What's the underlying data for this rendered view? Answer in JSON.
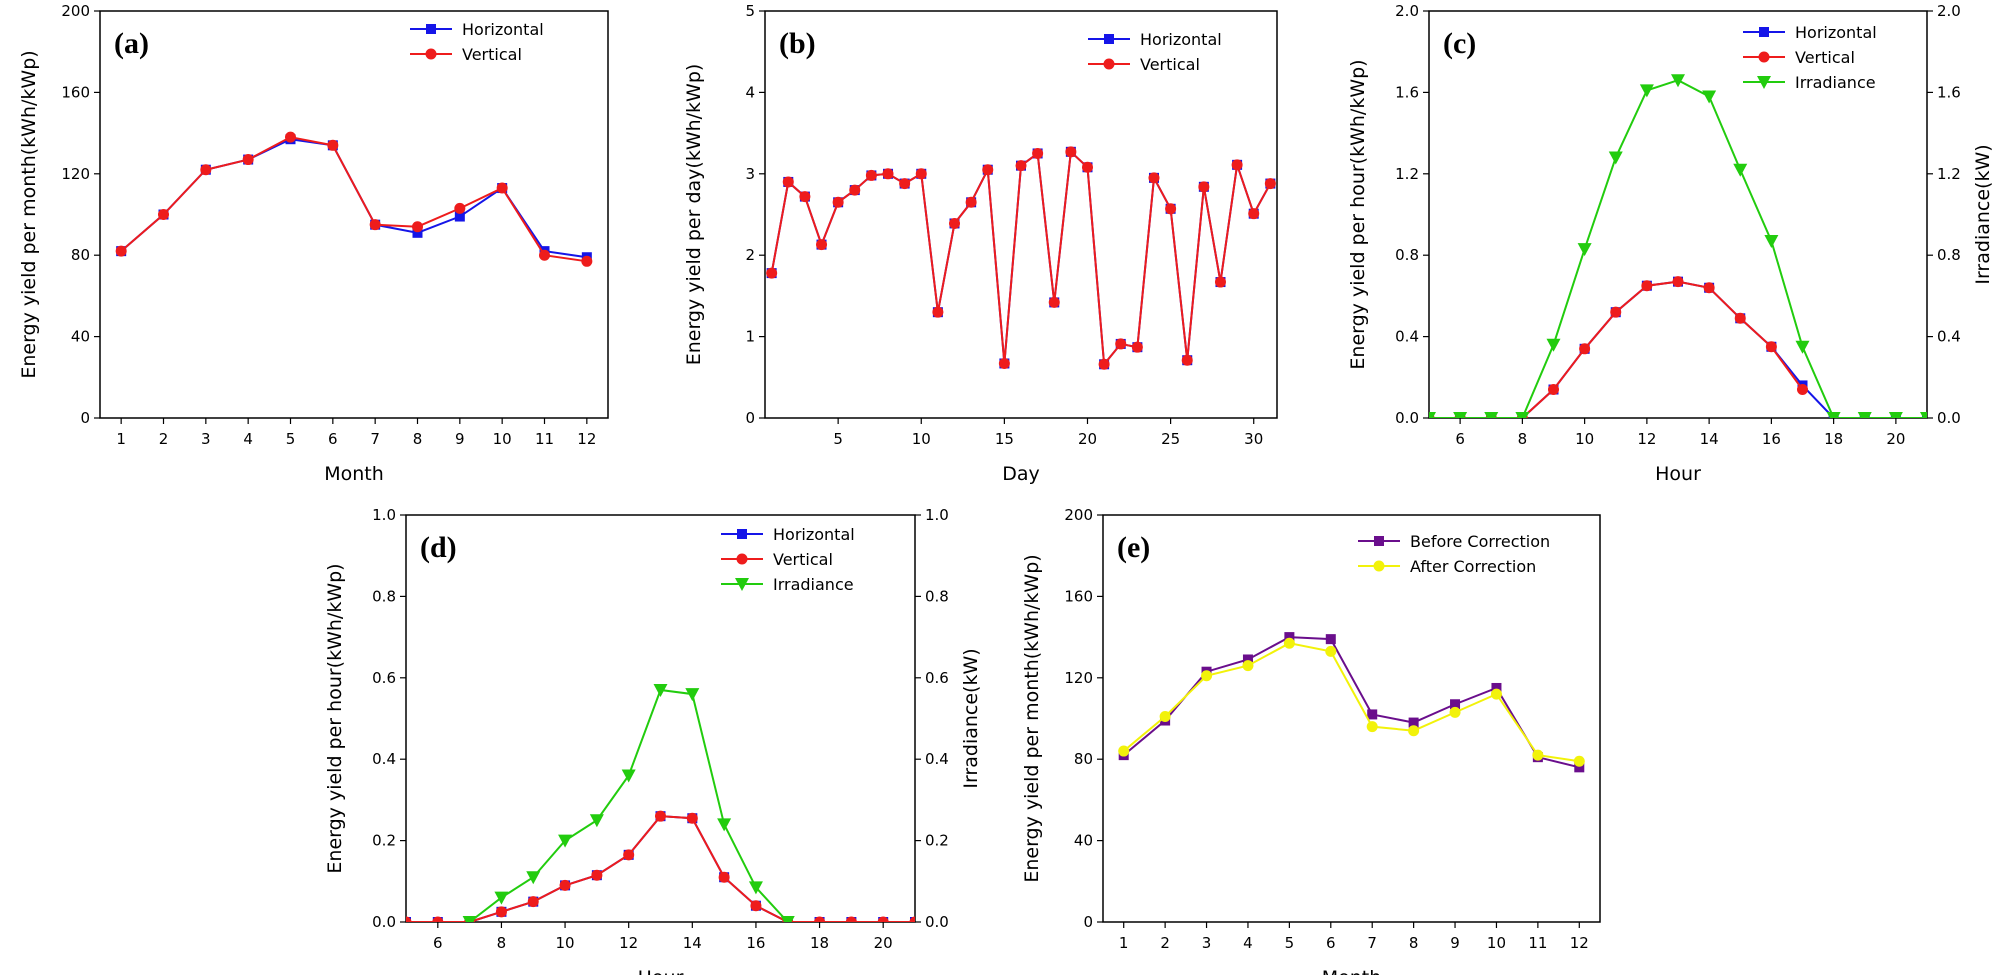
{
  "colors": {
    "horizontal": "#1515e8",
    "vertical": "#ee1c1c",
    "irradiance": "#22cc0e",
    "before": "#6a0e8c",
    "after": "#f2f20a"
  },
  "chart_data": [
    {
      "id": "a",
      "panel_label": "(a)",
      "type": "line",
      "xlabel": "Month",
      "ylabel": "Energy yield per month(kWh/kWp)",
      "xlim": [
        0.5,
        12.5
      ],
      "ylim": [
        0,
        200
      ],
      "x_ticks": [
        1,
        2,
        3,
        4,
        5,
        6,
        7,
        8,
        9,
        10,
        11,
        12
      ],
      "y_ticks": [
        0,
        40,
        80,
        120,
        160,
        200
      ],
      "legend_position": "top-right",
      "series": [
        {
          "name": "Horizontal",
          "color_key": "horizontal",
          "marker": "square",
          "x": [
            1,
            2,
            3,
            4,
            5,
            6,
            7,
            8,
            9,
            10,
            11,
            12
          ],
          "values": [
            82,
            100,
            122,
            127,
            137,
            134,
            95,
            91,
            99,
            113,
            82,
            79
          ]
        },
        {
          "name": "Vertical",
          "color_key": "vertical",
          "marker": "circle",
          "x": [
            1,
            2,
            3,
            4,
            5,
            6,
            7,
            8,
            9,
            10,
            11,
            12
          ],
          "values": [
            82,
            100,
            122,
            127,
            138,
            134,
            95,
            94,
            103,
            113,
            80,
            77
          ]
        }
      ]
    },
    {
      "id": "b",
      "panel_label": "(b)",
      "type": "line",
      "xlabel": "Day",
      "ylabel": "Energy yield per day(kWh/kWp)",
      "xlim": [
        0.6,
        31.4
      ],
      "ylim": [
        0,
        5
      ],
      "x_ticks": [
        5,
        10,
        15,
        20,
        25,
        30
      ],
      "y_ticks": [
        0,
        1,
        2,
        3,
        4,
        5
      ],
      "legend_position": "top-right",
      "series": [
        {
          "name": "Horizontal",
          "color_key": "horizontal",
          "marker": "square",
          "x": [
            1,
            2,
            3,
            4,
            5,
            6,
            7,
            8,
            9,
            10,
            11,
            12,
            13,
            14,
            15,
            16,
            17,
            18,
            19,
            20,
            21,
            22,
            23,
            24,
            25,
            26,
            27,
            28,
            29,
            30,
            31
          ],
          "values": [
            1.78,
            2.9,
            2.72,
            2.13,
            2.65,
            2.8,
            2.98,
            3.0,
            2.88,
            3.0,
            1.3,
            2.39,
            2.65,
            3.05,
            0.67,
            3.1,
            3.25,
            1.42,
            3.27,
            3.08,
            0.66,
            0.91,
            0.87,
            2.95,
            2.57,
            0.71,
            2.84,
            1.67,
            3.11,
            2.51,
            2.88
          ]
        },
        {
          "name": "Vertical",
          "color_key": "vertical",
          "marker": "circle",
          "x": [
            1,
            2,
            3,
            4,
            5,
            6,
            7,
            8,
            9,
            10,
            11,
            12,
            13,
            14,
            15,
            16,
            17,
            18,
            19,
            20,
            21,
            22,
            23,
            24,
            25,
            26,
            27,
            28,
            29,
            30,
            31
          ],
          "values": [
            1.78,
            2.9,
            2.72,
            2.13,
            2.65,
            2.8,
            2.98,
            3.0,
            2.88,
            3.0,
            1.3,
            2.39,
            2.65,
            3.05,
            0.67,
            3.1,
            3.25,
            1.42,
            3.27,
            3.08,
            0.66,
            0.91,
            0.87,
            2.95,
            2.57,
            0.71,
            2.84,
            1.67,
            3.11,
            2.51,
            2.88
          ]
        }
      ]
    },
    {
      "id": "c",
      "panel_label": "(c)",
      "type": "line",
      "xlabel": "Hour",
      "ylabel": "Energy yield per hour(kWh/kWp)",
      "y2label": "Irradiance(kW)",
      "xlim": [
        5,
        21
      ],
      "ylim": [
        0,
        2.0
      ],
      "y2lim": [
        0,
        2.0
      ],
      "x_ticks": [
        6,
        8,
        10,
        12,
        14,
        16,
        18,
        20
      ],
      "y_ticks": [
        "0.0",
        "0.4",
        "0.8",
        "1.2",
        "1.6",
        "2.0"
      ],
      "legend_position": "top-right",
      "series": [
        {
          "name": "Horizontal",
          "color_key": "horizontal",
          "marker": "square",
          "x": [
            5,
            6,
            7,
            8,
            9,
            10,
            11,
            12,
            13,
            14,
            15,
            16,
            17,
            18,
            19,
            20,
            21
          ],
          "values": [
            0,
            0,
            0,
            0,
            0.14,
            0.34,
            0.52,
            0.65,
            0.67,
            0.64,
            0.49,
            0.35,
            0.16,
            0,
            0,
            0,
            0
          ]
        },
        {
          "name": "Vertical",
          "color_key": "vertical",
          "marker": "circle",
          "x": [
            5,
            6,
            7,
            8,
            9,
            10,
            11,
            12,
            13,
            14,
            15,
            16,
            17
          ],
          "values": [
            0,
            0,
            0,
            0,
            0.14,
            0.34,
            0.52,
            0.65,
            0.67,
            0.64,
            0.49,
            0.35,
            0.14
          ]
        },
        {
          "name": "Irradiance",
          "color_key": "irradiance",
          "marker": "triangle-down",
          "x": [
            5,
            6,
            7,
            8,
            9,
            10,
            11,
            12,
            13,
            14,
            15,
            16,
            17,
            18,
            19,
            20,
            21
          ],
          "values": [
            0,
            0,
            0,
            0,
            0.36,
            0.83,
            1.28,
            1.61,
            1.66,
            1.58,
            1.22,
            0.87,
            0.35,
            0,
            0,
            0,
            0
          ]
        }
      ]
    },
    {
      "id": "d",
      "panel_label": "(d)",
      "type": "line",
      "xlabel": "Hour",
      "ylabel": "Energy yield per hour(kWh/kWp)",
      "y2label": "Irradiance(kW)",
      "xlim": [
        5,
        21
      ],
      "ylim": [
        0,
        1.0
      ],
      "y2lim": [
        0,
        1.0
      ],
      "x_ticks": [
        6,
        8,
        10,
        12,
        14,
        16,
        18,
        20
      ],
      "y_ticks": [
        "0.0",
        "0.2",
        "0.4",
        "0.6",
        "0.8",
        "1.0"
      ],
      "legend_position": "top-right",
      "series": [
        {
          "name": "Horizontal",
          "color_key": "horizontal",
          "marker": "square",
          "x": [
            5,
            6,
            7,
            8,
            9,
            10,
            11,
            12,
            13,
            14,
            15,
            16,
            17,
            18,
            19,
            20,
            21
          ],
          "values": [
            0,
            0,
            0,
            0.025,
            0.05,
            0.09,
            0.115,
            0.165,
            0.26,
            0.255,
            0.11,
            0.04,
            0,
            0,
            0,
            0,
            0
          ]
        },
        {
          "name": "Vertical",
          "color_key": "vertical",
          "marker": "circle",
          "x": [
            5,
            6,
            7,
            8,
            9,
            10,
            11,
            12,
            13,
            14,
            15,
            16,
            17,
            18,
            19,
            20,
            21
          ],
          "values": [
            0,
            0,
            0,
            0.025,
            0.05,
            0.09,
            0.115,
            0.165,
            0.26,
            0.255,
            0.11,
            0.04,
            0,
            0,
            0,
            0,
            0
          ]
        },
        {
          "name": "Irradiance",
          "color_key": "irradiance",
          "marker": "triangle-down",
          "x": [
            7,
            8,
            9,
            10,
            11,
            12,
            13,
            14,
            15,
            16,
            17
          ],
          "values": [
            0,
            0.06,
            0.11,
            0.2,
            0.25,
            0.36,
            0.57,
            0.56,
            0.24,
            0.085,
            0
          ]
        }
      ]
    },
    {
      "id": "e",
      "panel_label": "(e)",
      "type": "line",
      "xlabel": "Month",
      "ylabel": "Energy yield per month(kWh/kWp)",
      "xlim": [
        0.5,
        12.5
      ],
      "ylim": [
        0,
        200
      ],
      "x_ticks": [
        1,
        2,
        3,
        4,
        5,
        6,
        7,
        8,
        9,
        10,
        11,
        12
      ],
      "y_ticks": [
        0,
        40,
        80,
        120,
        160,
        200
      ],
      "legend_position": "top-right",
      "series": [
        {
          "name": "Before Correction",
          "color_key": "before",
          "marker": "square",
          "x": [
            1,
            2,
            3,
            4,
            5,
            6,
            7,
            8,
            9,
            10,
            11,
            12
          ],
          "values": [
            82,
            99,
            123,
            129,
            140,
            139,
            102,
            98,
            107,
            115,
            81,
            76
          ]
        },
        {
          "name": "After Correction",
          "color_key": "after",
          "marker": "circle",
          "x": [
            1,
            2,
            3,
            4,
            5,
            6,
            7,
            8,
            9,
            10,
            11,
            12
          ],
          "values": [
            84,
            101,
            121,
            126,
            137,
            133,
            96,
            94,
            103,
            112,
            82,
            79
          ]
        }
      ]
    }
  ]
}
